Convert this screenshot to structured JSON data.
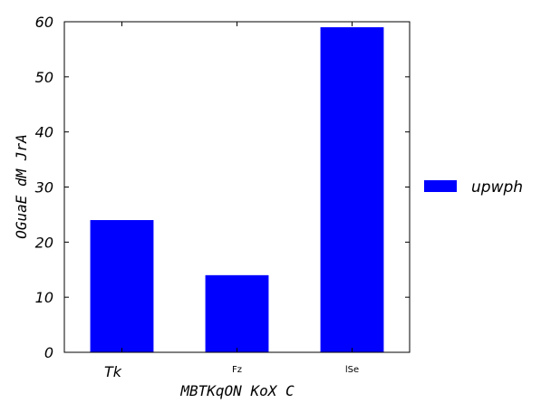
{
  "chart_data": {
    "type": "bar",
    "categories": [
      "Tk",
      "Fz",
      "lSe"
    ],
    "series": [
      {
        "name": "upwph",
        "values": [
          24,
          14,
          59
        ],
        "color": "#0000ff"
      }
    ],
    "title": "",
    "xlabel": "MBTKqON KoX C",
    "ylabel": "OGuaE dM JrA",
    "ylim": [
      0,
      60
    ],
    "yticks": [
      0,
      10,
      20,
      30,
      40,
      50,
      60
    ],
    "grid": false,
    "legend_position": "right"
  }
}
